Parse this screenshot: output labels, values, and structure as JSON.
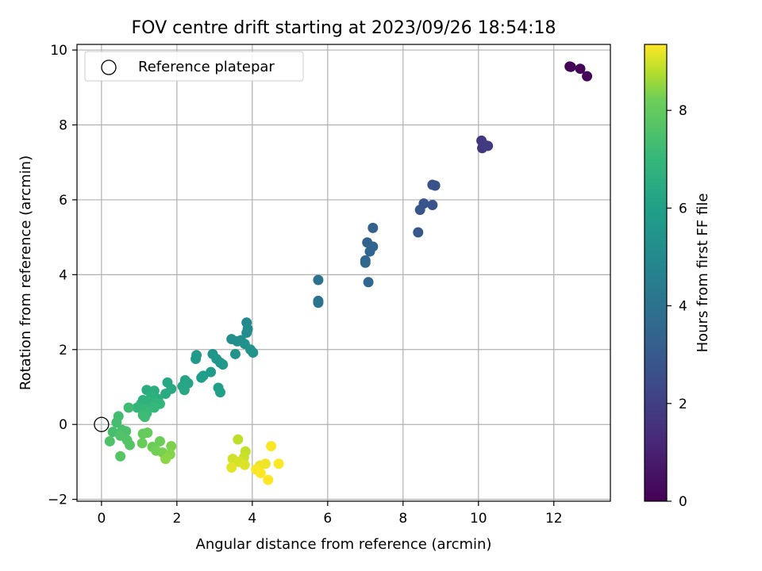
{
  "chart_data": {
    "type": "scatter",
    "title": "FOV centre drift starting at 2023/09/26 18:54:18",
    "xlabel": "Angular distance from reference (arcmin)",
    "ylabel": "Rotation from reference (arcmin)",
    "xlim": [
      -0.65,
      13.5
    ],
    "ylim": [
      -2.05,
      10.15
    ],
    "xticks": [
      0,
      2,
      4,
      6,
      8,
      10,
      12
    ],
    "yticks": [
      -2,
      0,
      2,
      4,
      6,
      8,
      10
    ],
    "grid": true,
    "legend": {
      "placement": "top-left",
      "entries": [
        "Reference platepar"
      ]
    },
    "reference": {
      "x": 0,
      "y": 0
    },
    "colorbar": {
      "label": "Hours from first FF file",
      "colormap": "viridis",
      "range": [
        0,
        9.35
      ],
      "ticks": [
        0,
        2,
        4,
        6,
        8
      ]
    },
    "points": [
      {
        "x": 12.42,
        "y": 9.56,
        "c": 0.05
      },
      {
        "x": 12.45,
        "y": 9.55,
        "c": 0.1
      },
      {
        "x": 12.7,
        "y": 9.5,
        "c": 0.15
      },
      {
        "x": 12.88,
        "y": 9.3,
        "c": 0.2
      },
      {
        "x": 10.08,
        "y": 7.58,
        "c": 1.7
      },
      {
        "x": 10.1,
        "y": 7.38,
        "c": 1.75
      },
      {
        "x": 10.2,
        "y": 7.45,
        "c": 1.8
      },
      {
        "x": 10.25,
        "y": 7.44,
        "c": 1.85
      },
      {
        "x": 8.78,
        "y": 6.4,
        "c": 2.65
      },
      {
        "x": 8.85,
        "y": 6.38,
        "c": 2.7
      },
      {
        "x": 8.78,
        "y": 5.86,
        "c": 2.75
      },
      {
        "x": 8.55,
        "y": 5.9,
        "c": 2.8
      },
      {
        "x": 8.45,
        "y": 5.73,
        "c": 2.85
      },
      {
        "x": 8.4,
        "y": 5.13,
        "c": 2.9
      },
      {
        "x": 7.2,
        "y": 5.25,
        "c": 3.3
      },
      {
        "x": 7.05,
        "y": 4.86,
        "c": 3.35
      },
      {
        "x": 7.2,
        "y": 4.75,
        "c": 3.4
      },
      {
        "x": 7.12,
        "y": 4.62,
        "c": 3.45
      },
      {
        "x": 7.0,
        "y": 4.38,
        "c": 3.5
      },
      {
        "x": 7.0,
        "y": 4.32,
        "c": 3.55
      },
      {
        "x": 7.08,
        "y": 3.8,
        "c": 3.6
      },
      {
        "x": 5.75,
        "y": 3.86,
        "c": 3.95
      },
      {
        "x": 5.75,
        "y": 3.3,
        "c": 4.0
      },
      {
        "x": 5.75,
        "y": 3.25,
        "c": 4.05
      },
      {
        "x": 3.85,
        "y": 2.72,
        "c": 5.0
      },
      {
        "x": 3.88,
        "y": 2.55,
        "c": 5.05
      },
      {
        "x": 3.85,
        "y": 2.45,
        "c": 5.1
      },
      {
        "x": 3.7,
        "y": 2.25,
        "c": 5.15
      },
      {
        "x": 3.6,
        "y": 2.22,
        "c": 5.2
      },
      {
        "x": 3.45,
        "y": 2.28,
        "c": 5.25
      },
      {
        "x": 3.8,
        "y": 2.15,
        "c": 5.3
      },
      {
        "x": 3.95,
        "y": 2.0,
        "c": 5.35
      },
      {
        "x": 4.02,
        "y": 1.92,
        "c": 5.4
      },
      {
        "x": 3.55,
        "y": 1.88,
        "c": 5.45
      },
      {
        "x": 2.95,
        "y": 1.88,
        "c": 5.5
      },
      {
        "x": 3.05,
        "y": 1.75,
        "c": 5.55
      },
      {
        "x": 3.15,
        "y": 1.65,
        "c": 5.6
      },
      {
        "x": 3.22,
        "y": 1.6,
        "c": 5.65
      },
      {
        "x": 2.52,
        "y": 1.85,
        "c": 5.7
      },
      {
        "x": 2.5,
        "y": 1.75,
        "c": 5.75
      },
      {
        "x": 2.9,
        "y": 1.4,
        "c": 5.8
      },
      {
        "x": 2.7,
        "y": 1.3,
        "c": 5.85
      },
      {
        "x": 2.65,
        "y": 1.25,
        "c": 5.9
      },
      {
        "x": 3.1,
        "y": 0.98,
        "c": 5.95
      },
      {
        "x": 3.15,
        "y": 0.86,
        "c": 6.0
      },
      {
        "x": 2.22,
        "y": 1.18,
        "c": 6.15
      },
      {
        "x": 2.3,
        "y": 1.1,
        "c": 6.2
      },
      {
        "x": 2.15,
        "y": 1.02,
        "c": 6.25
      },
      {
        "x": 2.2,
        "y": 0.92,
        "c": 6.3
      },
      {
        "x": 1.75,
        "y": 1.12,
        "c": 6.35
      },
      {
        "x": 1.85,
        "y": 0.95,
        "c": 6.4
      },
      {
        "x": 1.7,
        "y": 0.82,
        "c": 6.45
      },
      {
        "x": 1.2,
        "y": 0.92,
        "c": 6.5
      },
      {
        "x": 1.4,
        "y": 0.9,
        "c": 6.55
      },
      {
        "x": 1.5,
        "y": 0.68,
        "c": 6.6
      },
      {
        "x": 1.32,
        "y": 0.75,
        "c": 6.65
      },
      {
        "x": 1.1,
        "y": 0.65,
        "c": 6.7
      },
      {
        "x": 1.25,
        "y": 0.6,
        "c": 6.75
      },
      {
        "x": 1.05,
        "y": 0.55,
        "c": 6.8
      },
      {
        "x": 1.45,
        "y": 0.58,
        "c": 6.85
      },
      {
        "x": 1.55,
        "y": 0.55,
        "c": 6.9
      },
      {
        "x": 0.95,
        "y": 0.45,
        "c": 6.95
      },
      {
        "x": 1.4,
        "y": 0.45,
        "c": 7.0
      },
      {
        "x": 1.15,
        "y": 0.4,
        "c": 7.05
      },
      {
        "x": 1.2,
        "y": 0.3,
        "c": 7.1
      },
      {
        "x": 1.1,
        "y": 0.25,
        "c": 7.15
      },
      {
        "x": 1.15,
        "y": 0.2,
        "c": 7.2
      },
      {
        "x": 0.72,
        "y": 0.45,
        "c": 7.25
      },
      {
        "x": 0.45,
        "y": 0.22,
        "c": 7.3
      },
      {
        "x": 0.4,
        "y": 0.05,
        "c": 7.35
      },
      {
        "x": 0.3,
        "y": -0.2,
        "c": 7.4
      },
      {
        "x": 0.55,
        "y": -0.15,
        "c": 7.45
      },
      {
        "x": 0.65,
        "y": -0.18,
        "c": 7.5
      },
      {
        "x": 0.22,
        "y": -0.45,
        "c": 7.55
      },
      {
        "x": 0.5,
        "y": -0.3,
        "c": 7.6
      },
      {
        "x": 0.68,
        "y": -0.42,
        "c": 7.65
      },
      {
        "x": 0.75,
        "y": -0.55,
        "c": 7.7
      },
      {
        "x": 0.5,
        "y": -0.85,
        "c": 7.75
      },
      {
        "x": 1.1,
        "y": -0.25,
        "c": 8.0
      },
      {
        "x": 1.22,
        "y": -0.22,
        "c": 8.05
      },
      {
        "x": 1.08,
        "y": -0.5,
        "c": 8.1
      },
      {
        "x": 1.35,
        "y": -0.6,
        "c": 8.15
      },
      {
        "x": 1.55,
        "y": -0.45,
        "c": 8.2
      },
      {
        "x": 1.45,
        "y": -0.7,
        "c": 8.25
      },
      {
        "x": 1.62,
        "y": -0.75,
        "c": 8.3
      },
      {
        "x": 1.85,
        "y": -0.58,
        "c": 8.35
      },
      {
        "x": 1.82,
        "y": -0.8,
        "c": 8.4
      },
      {
        "x": 1.7,
        "y": -0.92,
        "c": 8.45
      },
      {
        "x": 3.62,
        "y": -0.4,
        "c": 8.85
      },
      {
        "x": 3.82,
        "y": -0.72,
        "c": 8.9
      },
      {
        "x": 3.78,
        "y": -0.88,
        "c": 8.95
      },
      {
        "x": 3.48,
        "y": -0.92,
        "c": 9.0
      },
      {
        "x": 3.65,
        "y": -1.0,
        "c": 9.05
      },
      {
        "x": 3.8,
        "y": -1.08,
        "c": 9.1
      },
      {
        "x": 3.45,
        "y": -1.15,
        "c": 9.15
      },
      {
        "x": 4.2,
        "y": -1.1,
        "c": 9.2
      },
      {
        "x": 4.35,
        "y": -1.05,
        "c": 9.25
      },
      {
        "x": 4.1,
        "y": -1.2,
        "c": 9.3
      },
      {
        "x": 4.5,
        "y": -0.58,
        "c": 9.32
      },
      {
        "x": 4.7,
        "y": -1.05,
        "c": 9.33
      },
      {
        "x": 4.22,
        "y": -1.3,
        "c": 9.34
      },
      {
        "x": 4.42,
        "y": -1.48,
        "c": 9.35
      }
    ]
  }
}
